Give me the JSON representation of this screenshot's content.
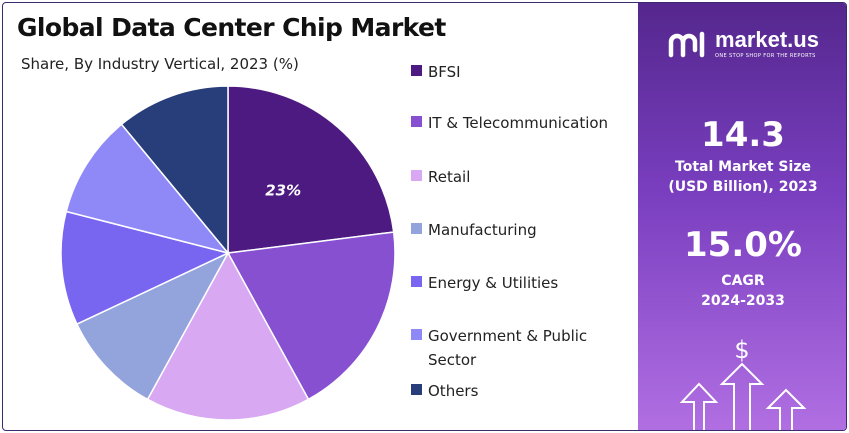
{
  "title": "Global Data Center Chip Market",
  "subtitle": "Share, By Industry Vertical, 2023 (%)",
  "chart_data": {
    "type": "pie",
    "title": "Global Data Center Chip Market",
    "subtitle": "Share, By Industry Vertical, 2023 (%)",
    "legend_position": "right",
    "categories": [
      "BFSI",
      "IT & Telecommunication",
      "Retail",
      "Manufacturing",
      "Energy & Utilities",
      "Government & Public Sector",
      "Others"
    ],
    "values": [
      23,
      19,
      16,
      10,
      11,
      10,
      11
    ],
    "colors": [
      "#4d1a82",
      "#8650d1",
      "#d8a8f2",
      "#93a4dc",
      "#7966f0",
      "#8f89f7",
      "#283e7a"
    ],
    "data_labels": [
      {
        "category": "BFSI",
        "text": "23%"
      }
    ]
  },
  "legend": {
    "items": [
      {
        "label": "BFSI",
        "color": "#4d1a82"
      },
      {
        "label": "IT & Telecommunication",
        "color": "#8650d1"
      },
      {
        "label": "Retail",
        "color": "#d8a8f2"
      },
      {
        "label": "Manufacturing",
        "color": "#93a4dc"
      },
      {
        "label": "Energy & Utilities",
        "color": "#7966f0"
      },
      {
        "label": "Government & Public Sector",
        "color": "#8f89f7"
      },
      {
        "label": "Others",
        "color": "#283e7a"
      }
    ]
  },
  "side_panel": {
    "brand_name": "market.us",
    "brand_tagline": "ONE STOP SHOP FOR THE REPORTS",
    "market_size_value": "14.3",
    "market_size_label_line1": "Total Market Size",
    "market_size_label_line2": "(USD Billion), 2023",
    "cagr_value": "15.0%",
    "cagr_label_line1": "CAGR",
    "cagr_label_line2": "2024-2033",
    "icon": "dollar-growth-arrows-icon"
  }
}
